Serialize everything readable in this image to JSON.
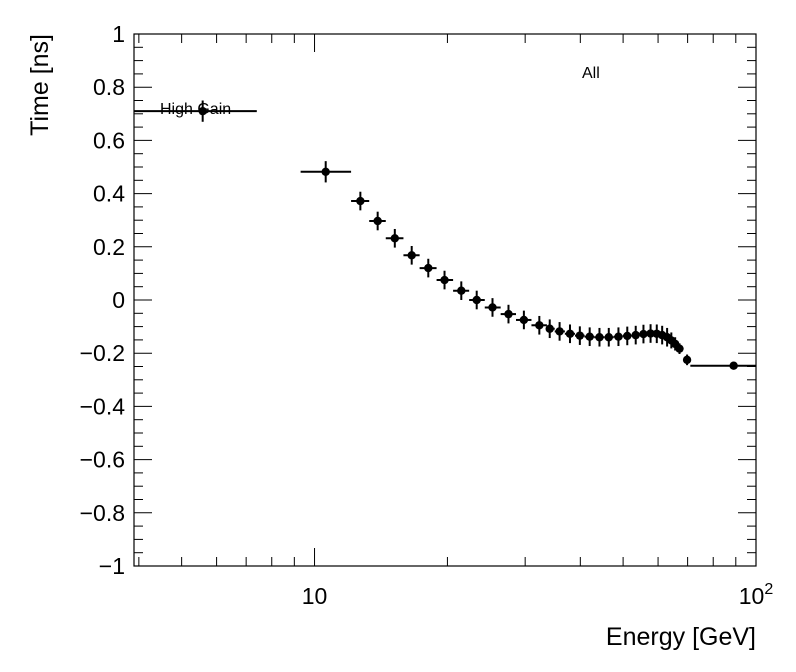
{
  "chart_data": {
    "type": "scatter",
    "xscale": "log",
    "xlim": [
      3.9,
      100
    ],
    "ylim": [
      -1,
      1
    ],
    "xlabel": "Energy [GeV]",
    "ylabel": "Time [ns]",
    "annotations": [
      "All",
      "High Gain"
    ],
    "x_ticks": [
      {
        "value": 10,
        "label": "10"
      },
      {
        "value": 100,
        "label": "10",
        "sup": "2"
      }
    ],
    "y_ticks": [
      {
        "value": 1,
        "label": "1"
      },
      {
        "value": 0.8,
        "label": "0.8"
      },
      {
        "value": 0.6,
        "label": "0.6"
      },
      {
        "value": 0.4,
        "label": "0.4"
      },
      {
        "value": 0.2,
        "label": "0.2"
      },
      {
        "value": 0,
        "label": "0"
      },
      {
        "value": -0.2,
        "label": "−0.2"
      },
      {
        "value": -0.4,
        "label": "−0.4"
      },
      {
        "value": -0.6,
        "label": "−0.6"
      },
      {
        "value": -0.8,
        "label": "−0.8"
      },
      {
        "value": -1,
        "label": "−1"
      }
    ],
    "series": [
      {
        "name": "High Gain",
        "points": [
          {
            "x": 5.58,
            "y": 0.71,
            "xlo": 3.9,
            "xhi": 7.4,
            "err": 0.04
          },
          {
            "x": 10.6,
            "y": 0.482,
            "xlo": 9.3,
            "xhi": 12.1,
            "err": 0.04
          },
          {
            "x": 12.7,
            "y": 0.372,
            "xlo": 12.1,
            "xhi": 13.3,
            "err": 0.035
          },
          {
            "x": 13.9,
            "y": 0.297,
            "xlo": 13.3,
            "xhi": 14.5,
            "err": 0.035
          },
          {
            "x": 15.2,
            "y": 0.232,
            "xlo": 14.5,
            "xhi": 15.9,
            "err": 0.035
          },
          {
            "x": 16.6,
            "y": 0.168,
            "xlo": 15.9,
            "xhi": 17.3,
            "err": 0.035
          },
          {
            "x": 18.1,
            "y": 0.12,
            "xlo": 17.3,
            "xhi": 18.9,
            "err": 0.035
          },
          {
            "x": 19.7,
            "y": 0.075,
            "xlo": 18.9,
            "xhi": 20.6,
            "err": 0.035
          },
          {
            "x": 21.5,
            "y": 0.035,
            "xlo": 20.6,
            "xhi": 22.4,
            "err": 0.035
          },
          {
            "x": 23.3,
            "y": 0.0,
            "xlo": 22.4,
            "xhi": 24.3,
            "err": 0.035
          },
          {
            "x": 25.3,
            "y": -0.028,
            "xlo": 24.3,
            "xhi": 26.4,
            "err": 0.035
          },
          {
            "x": 27.5,
            "y": -0.053,
            "xlo": 26.4,
            "xhi": 28.6,
            "err": 0.035
          },
          {
            "x": 29.8,
            "y": -0.075,
            "xlo": 28.6,
            "xhi": 31.0,
            "err": 0.035
          },
          {
            "x": 32.3,
            "y": -0.095,
            "xlo": 31.0,
            "xhi": 33.6,
            "err": 0.035
          },
          {
            "x": 34.1,
            "y": -0.108,
            "xlo": 33.6,
            "xhi": 35.0,
            "err": 0.035
          },
          {
            "x": 35.9,
            "y": -0.118,
            "xlo": 35.0,
            "xhi": 36.9,
            "err": 0.035
          },
          {
            "x": 37.9,
            "y": -0.127,
            "xlo": 36.9,
            "xhi": 38.9,
            "err": 0.035
          },
          {
            "x": 39.9,
            "y": -0.134,
            "xlo": 38.9,
            "xhi": 40.9,
            "err": 0.035
          },
          {
            "x": 42.0,
            "y": -0.138,
            "xlo": 40.9,
            "xhi": 43.0,
            "err": 0.035
          },
          {
            "x": 44.2,
            "y": -0.14,
            "xlo": 43.0,
            "xhi": 45.3,
            "err": 0.035
          },
          {
            "x": 46.4,
            "y": -0.14,
            "xlo": 45.3,
            "xhi": 47.6,
            "err": 0.035
          },
          {
            "x": 48.8,
            "y": -0.138,
            "xlo": 47.6,
            "xhi": 49.9,
            "err": 0.035
          },
          {
            "x": 51.1,
            "y": -0.135,
            "xlo": 49.9,
            "xhi": 52.3,
            "err": 0.035
          },
          {
            "x": 53.4,
            "y": -0.132,
            "xlo": 52.3,
            "xhi": 54.5,
            "err": 0.035
          },
          {
            "x": 55.6,
            "y": -0.128,
            "xlo": 54.5,
            "xhi": 56.7,
            "err": 0.035
          },
          {
            "x": 57.7,
            "y": -0.126,
            "xlo": 56.7,
            "xhi": 58.7,
            "err": 0.035
          },
          {
            "x": 59.6,
            "y": -0.127,
            "xlo": 58.7,
            "xhi": 60.5,
            "err": 0.035
          },
          {
            "x": 61.3,
            "y": -0.132,
            "xlo": 60.5,
            "xhi": 62.1,
            "err": 0.035
          },
          {
            "x": 62.9,
            "y": -0.14,
            "xlo": 62.1,
            "xhi": 63.6,
            "err": 0.035
          },
          {
            "x": 64.3,
            "y": -0.152,
            "xlo": 63.6,
            "xhi": 65.0,
            "err": 0.03
          },
          {
            "x": 65.6,
            "y": -0.165,
            "xlo": 65.0,
            "xhi": 66.3,
            "err": 0.025
          },
          {
            "x": 67.1,
            "y": -0.183,
            "xlo": 66.3,
            "xhi": 67.9,
            "err": 0.02
          },
          {
            "x": 69.8,
            "y": -0.225,
            "xlo": 68.8,
            "xhi": 70.9,
            "err": 0.02
          },
          {
            "x": 89.0,
            "y": -0.247,
            "xlo": 71.0,
            "xhi": 108.0,
            "err": 0.005
          }
        ]
      }
    ]
  }
}
